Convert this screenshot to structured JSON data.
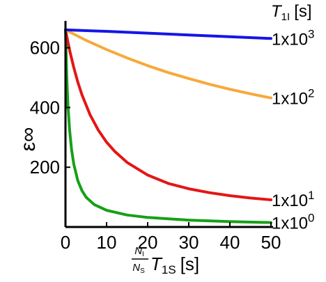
{
  "chart_data": {
    "type": "line",
    "x_range": [
      0,
      50
    ],
    "y_range": [
      0,
      690
    ],
    "x_ticks": [
      "0",
      "10",
      "20",
      "30",
      "40",
      "50"
    ],
    "y_ticks": [
      "200",
      "400",
      "600"
    ],
    "x_tick_values": [
      0,
      10,
      20,
      30,
      40,
      50
    ],
    "y_tick_values": [
      200,
      400,
      600
    ],
    "ylabel": "ε∞",
    "xlabel": {
      "frac_num": "N",
      "frac_num_sub": "I",
      "frac_den": "N",
      "frac_den_sub": "S",
      "main": "T",
      "main_sub": "1S",
      "unit": "[s]"
    },
    "legend_title": {
      "main": "T",
      "sub": "1I",
      "unit": "[s]"
    },
    "grid": false,
    "series": [
      {
        "name_base": "1x10",
        "name_exp": "3",
        "color": "#1515e6",
        "x": [
          0,
          10,
          20,
          30,
          40,
          50
        ],
        "y": [
          660,
          655,
          649,
          643,
          637,
          631
        ]
      },
      {
        "name_base": "1x10",
        "name_exp": "2",
        "color": "#f7a93a",
        "x": [
          0,
          5,
          10,
          15,
          20,
          25,
          30,
          35,
          40,
          45,
          50
        ],
        "y": [
          660,
          625,
          594,
          566,
          540,
          517,
          497,
          478,
          461,
          446,
          432
        ]
      },
      {
        "name_base": "1x10",
        "name_exp": "1",
        "color": "#e51515",
        "x": [
          0,
          1,
          2,
          3,
          4,
          6,
          8,
          10,
          12,
          15,
          20,
          25,
          30,
          35,
          40,
          45,
          50
        ],
        "y": [
          660,
          592,
          535,
          485,
          443,
          375,
          324,
          284,
          253,
          216,
          174,
          146,
          128,
          115,
          105,
          97,
          91
        ]
      },
      {
        "name_base": "1x10",
        "name_exp": "0",
        "color": "#16a016",
        "x": [
          0,
          0.3,
          0.6,
          1,
          1.5,
          2,
          3,
          4,
          5,
          7,
          10,
          15,
          20,
          30,
          40,
          50
        ],
        "y": [
          660,
          505,
          410,
          325,
          258,
          212,
          155,
          122,
          100,
          75,
          56,
          40,
          32,
          23,
          18,
          15
        ]
      }
    ]
  }
}
